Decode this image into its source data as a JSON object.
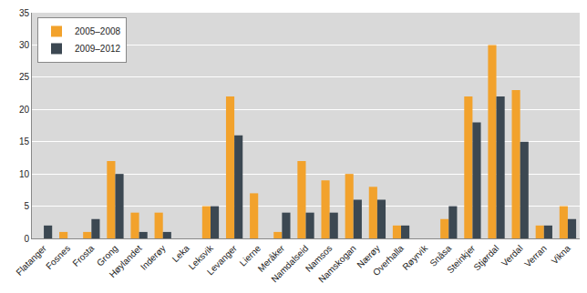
{
  "chart_data": {
    "type": "bar",
    "categories": [
      "Flatanger",
      "Fosnes",
      "Frosta",
      "Grong",
      "Høylandet",
      "Inderøy",
      "Leka",
      "Leksvik",
      "Levanger",
      "Lierne",
      "Meråker",
      "Namdalseid",
      "Namsos",
      "Namskogan",
      "Nærøy",
      "Overhalla",
      "Røyrvik",
      "Snåsa",
      "Steinkjer",
      "Stjørdal",
      "Verdal",
      "Verran",
      "Vikna"
    ],
    "series": [
      {
        "name": "2005–2008",
        "color": "#f2a22c",
        "values": [
          0,
          1,
          1,
          12,
          4,
          4,
          0,
          5,
          22,
          7,
          1,
          12,
          9,
          10,
          8,
          2,
          0,
          3,
          22,
          30,
          23,
          2,
          5
        ]
      },
      {
        "name": "2009–2012",
        "color": "#3c4852",
        "values": [
          2,
          0,
          3,
          10,
          1,
          1,
          0,
          5,
          16,
          0,
          4,
          4,
          4,
          6,
          6,
          2,
          0,
          5,
          18,
          22,
          15,
          2,
          3
        ]
      }
    ],
    "ylim": [
      0,
      35
    ],
    "yticks": [
      0,
      5,
      10,
      15,
      20,
      25,
      30,
      35
    ],
    "grid": true,
    "legend": "top-left"
  }
}
